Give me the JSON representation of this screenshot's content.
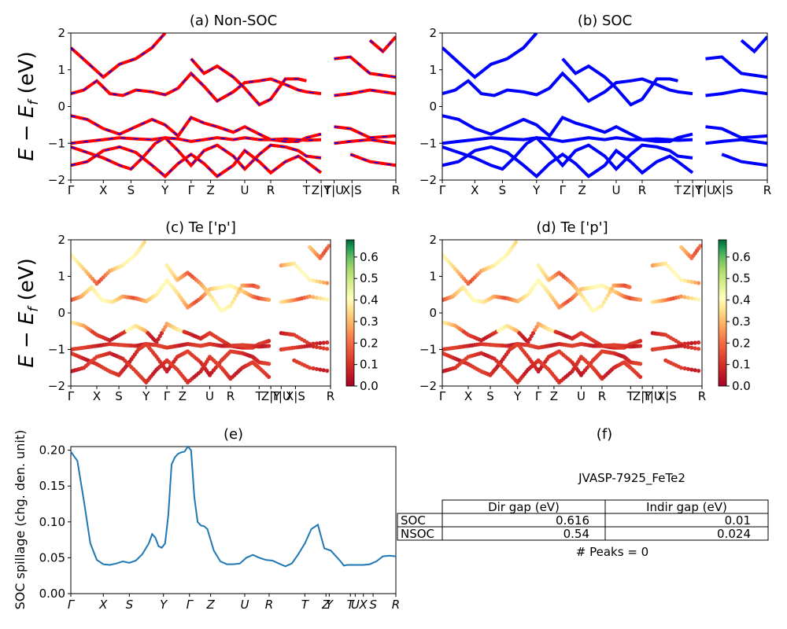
{
  "panels": {
    "a": {
      "title": "(a) Non-SOC"
    },
    "b": {
      "title": "(b) SOC"
    },
    "c": {
      "title": "(c)  Te ['p']"
    },
    "d": {
      "title": "(d) Te ['p']"
    },
    "e": {
      "title": "(e)"
    },
    "f": {
      "title": "(f)"
    }
  },
  "band_ylabel": "E − E_f (eV)",
  "band_ylabel_parts": {
    "E": "E",
    "minus": " − ",
    "Ef": "E",
    "sub": "f",
    "unit": " (eV)"
  },
  "spillage_ylabel": "SOC spillage (chg. den. unit)",
  "chart_data": [
    {
      "id": "a",
      "type": "line",
      "title": "(a) Non-SOC",
      "ylim": [
        -2,
        2
      ],
      "yticks": [
        "2",
        "1",
        "0",
        "−1",
        "−2"
      ],
      "xticks": [
        "Γ",
        "X",
        "S",
        "Y",
        "Γ",
        "Z",
        "U",
        "R",
        "T",
        "Z|Y",
        "T|U",
        "X|S",
        "R"
      ],
      "series": [
        {
          "color": "#ff0000",
          "dash_color": "#0000ff"
        }
      ]
    },
    {
      "id": "b",
      "type": "line",
      "title": "(b) SOC",
      "ylim": [
        -2,
        2
      ],
      "yticks": [
        "2",
        "1",
        "0",
        "−1",
        "−2"
      ],
      "xticks": [
        "Γ",
        "X",
        "S",
        "Y",
        "Γ",
        "Z",
        "U",
        "R",
        "T",
        "Z|Y",
        "T|U",
        "X|S",
        "R"
      ],
      "series": [
        {
          "color": "#0000ff"
        }
      ]
    },
    {
      "id": "c",
      "type": "scatter",
      "title": "(c)  Te ['p']",
      "ylim": [
        -2,
        2
      ],
      "yticks": [
        "2",
        "1",
        "0",
        "−1",
        "−2"
      ],
      "xticks": [
        "Γ",
        "X",
        "S",
        "Y",
        "Γ",
        "Z",
        "U",
        "R",
        "T",
        "Z|Y",
        "T|U",
        "X|S",
        "R"
      ],
      "colorbar": {
        "min": 0.0,
        "max": 0.68,
        "ticks": [
          "0.0",
          "0.1",
          "0.2",
          "0.3",
          "0.4",
          "0.5",
          "0.6"
        ],
        "colormap": "RdYlGn"
      }
    },
    {
      "id": "d",
      "type": "scatter",
      "title": "(d) Te ['p']",
      "ylim": [
        -2,
        2
      ],
      "yticks": [
        "2",
        "1",
        "0",
        "−1",
        "−2"
      ],
      "xticks": [
        "Γ",
        "X",
        "S",
        "Y",
        "Γ",
        "Z",
        "U",
        "R",
        "T",
        "Z|Y",
        "T|U",
        "X|S",
        "R"
      ],
      "colorbar": {
        "min": 0.0,
        "max": 0.68,
        "ticks": [
          "0.0",
          "0.1",
          "0.2",
          "0.3",
          "0.4",
          "0.5",
          "0.6"
        ],
        "colormap": "RdYlGn"
      }
    },
    {
      "id": "e",
      "type": "line",
      "title": "(e)",
      "ylabel": "SOC spillage (chg. den. unit)",
      "ylim": [
        0,
        0.205
      ],
      "yticks": [
        "0.00",
        "0.05",
        "0.10",
        "0.15",
        "0.20"
      ],
      "xticks": [
        "Γ",
        "X",
        "S",
        "Y",
        "Γ",
        "Z",
        "U",
        "R",
        "T",
        "Z",
        "Y",
        "T",
        "U",
        "X",
        "S",
        "R"
      ],
      "series": [
        {
          "color": "#1f77b4",
          "x": [
            0,
            0.02,
            0.04,
            0.06,
            0.08,
            0.1,
            0.12,
            0.14,
            0.16,
            0.18,
            0.2,
            0.22,
            0.24,
            0.25,
            0.26,
            0.27,
            0.28,
            0.29,
            0.3,
            0.31,
            0.32,
            0.33,
            0.34,
            0.35,
            0.36,
            0.37,
            0.38,
            0.39,
            0.4,
            0.41,
            0.42,
            0.44,
            0.46,
            0.48,
            0.5,
            0.52,
            0.54,
            0.56,
            0.58,
            0.6,
            0.62,
            0.64,
            0.66,
            0.68,
            0.7,
            0.72,
            0.74,
            0.76,
            0.78,
            0.8,
            0.81,
            0.82,
            0.83,
            0.84,
            0.85,
            0.86,
            0.88,
            0.9,
            0.92,
            0.94,
            0.96,
            0.98,
            1.0
          ],
          "values": [
            0.198,
            0.185,
            0.13,
            0.07,
            0.047,
            0.041,
            0.04,
            0.042,
            0.045,
            0.043,
            0.046,
            0.055,
            0.07,
            0.083,
            0.078,
            0.066,
            0.064,
            0.07,
            0.11,
            0.18,
            0.19,
            0.195,
            0.197,
            0.198,
            0.205,
            0.2,
            0.135,
            0.1,
            0.095,
            0.094,
            0.09,
            0.06,
            0.045,
            0.041,
            0.041,
            0.042,
            0.05,
            0.054,
            0.05,
            0.047,
            0.046,
            0.042,
            0.038,
            0.042,
            0.055,
            0.07,
            0.09,
            0.096,
            0.063,
            0.06,
            0.055,
            0.05,
            0.045,
            0.039,
            0.04,
            0.04,
            0.04,
            0.04,
            0.041,
            0.045,
            0.052,
            0.053,
            0.052
          ]
        }
      ]
    }
  ],
  "table": {
    "title": "JVASP-7925_FeTe2",
    "header": [
      "",
      "Dir gap (eV)",
      "Indir gap (eV)"
    ],
    "rows": [
      [
        "SOC",
        "0.616",
        "0.01"
      ],
      [
        "NSOC",
        "0.54",
        "0.024"
      ]
    ],
    "peaks": "# Peaks = 0"
  },
  "colors": {
    "red": "#ff0000",
    "blue": "#0000ff",
    "spillage": "#1f77b4"
  }
}
